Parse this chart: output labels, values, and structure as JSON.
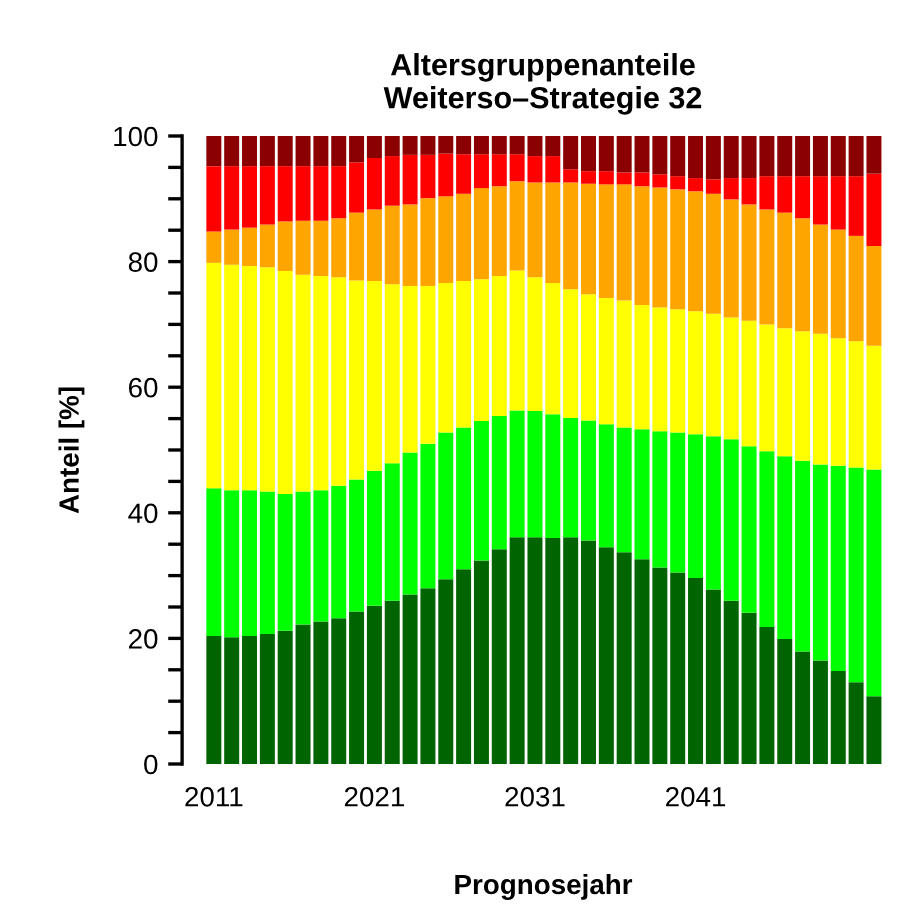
{
  "chart_data": {
    "type": "bar",
    "stacked": true,
    "title": "Altersgruppenanteile\nWeiterso–Strategie 32",
    "xlabel": "Prognosejahr",
    "ylabel": "Anteil [%]",
    "categories": [
      "2011",
      null,
      null,
      null,
      null,
      null,
      null,
      null,
      null,
      "2021",
      null,
      null,
      null,
      null,
      null,
      null,
      null,
      null,
      "2031",
      null,
      null,
      null,
      null,
      null,
      null,
      null,
      null,
      "2041",
      null,
      null,
      null,
      null,
      null,
      null,
      null,
      null,
      null,
      null
    ],
    "series": [
      {
        "color": "#006400",
        "values": [
          20.4,
          20.2,
          20.4,
          20.7,
          21.2,
          22.2,
          22.7,
          23.2,
          24.3,
          25.2,
          26.0,
          27.0,
          28.0,
          29.4,
          31.0,
          32.4,
          34.2,
          36.1,
          36.1,
          36.0,
          36.1,
          35.6,
          34.5,
          33.7,
          32.6,
          31.3,
          30.5,
          29.6,
          27.8,
          26.0,
          24.1,
          21.8,
          19.9,
          17.9,
          16.5,
          14.8,
          13.0,
          10.8
        ]
      },
      {
        "color": "#00ff00",
        "values": [
          23.5,
          23.4,
          23.2,
          22.7,
          21.8,
          21.2,
          20.9,
          21.1,
          21.0,
          21.5,
          21.9,
          22.6,
          23.0,
          23.4,
          22.6,
          22.2,
          21.2,
          20.2,
          20.1,
          19.7,
          19.0,
          19.1,
          19.6,
          19.9,
          20.7,
          21.7,
          22.3,
          22.9,
          24.4,
          25.7,
          26.5,
          28.0,
          29.1,
          30.4,
          31.2,
          32.7,
          34.2,
          36.1
        ]
      },
      {
        "color": "#ffff00",
        "values": [
          35.9,
          35.9,
          35.7,
          35.7,
          35.5,
          34.5,
          34.1,
          33.2,
          31.7,
          30.2,
          28.5,
          26.5,
          25.1,
          23.8,
          23.3,
          22.6,
          22.3,
          22.3,
          21.3,
          20.9,
          20.5,
          20.1,
          20.1,
          20.2,
          19.8,
          19.7,
          19.6,
          19.6,
          19.5,
          19.4,
          20.0,
          20.2,
          20.4,
          20.6,
          20.8,
          20.3,
          20.1,
          19.7
        ]
      },
      {
        "color": "#ffa500",
        "values": [
          5.0,
          5.6,
          6.1,
          6.8,
          7.9,
          8.6,
          8.8,
          9.4,
          10.8,
          11.4,
          12.5,
          13.0,
          14.0,
          13.8,
          13.9,
          14.5,
          14.3,
          14.2,
          15.1,
          16.0,
          17.0,
          17.6,
          18.1,
          18.5,
          18.9,
          19.1,
          19.1,
          19.1,
          19.1,
          18.8,
          18.5,
          18.3,
          18.4,
          18.0,
          17.4,
          17.3,
          16.8,
          15.9
        ]
      },
      {
        "color": "#ff0000",
        "values": [
          10.4,
          10.1,
          9.8,
          9.3,
          8.8,
          8.7,
          8.7,
          8.3,
          8.0,
          8.2,
          7.9,
          7.9,
          6.9,
          6.8,
          6.3,
          5.4,
          5.1,
          4.3,
          4.2,
          4.2,
          2.1,
          2.0,
          2.1,
          1.9,
          2.2,
          2.1,
          2.1,
          2.1,
          2.3,
          3.4,
          4.2,
          5.3,
          5.8,
          6.7,
          7.7,
          8.5,
          9.5,
          11.5
        ]
      },
      {
        "color": "#8b0000",
        "values": [
          4.8,
          4.8,
          4.8,
          4.8,
          4.8,
          4.8,
          4.8,
          4.8,
          4.2,
          3.5,
          3.2,
          3.0,
          3.0,
          2.8,
          2.9,
          2.9,
          2.9,
          2.9,
          3.2,
          3.2,
          5.3,
          5.6,
          5.6,
          5.8,
          5.8,
          6.1,
          6.4,
          6.7,
          6.9,
          6.7,
          6.7,
          6.4,
          6.4,
          6.4,
          6.4,
          6.4,
          6.4,
          6.0
        ]
      }
    ],
    "ylim": [
      0,
      100
    ],
    "yticks": [
      0,
      {
        "value": 5,
        "label": null
      },
      {
        "value": 10,
        "label": null
      },
      {
        "value": 15,
        "label": null
      },
      20,
      {
        "value": 25,
        "label": null
      },
      {
        "value": 30,
        "label": null
      },
      {
        "value": 35,
        "label": null
      },
      40,
      {
        "value": 45,
        "label": null
      },
      {
        "value": 50,
        "label": null
      },
      {
        "value": 55,
        "label": null
      },
      60,
      {
        "value": 65,
        "label": null
      },
      {
        "value": 70,
        "label": null
      },
      {
        "value": 75,
        "label": null
      },
      80,
      {
        "value": 85,
        "label": null
      },
      {
        "value": 90,
        "label": null
      },
      {
        "value": 95,
        "label": null
      },
      100
    ],
    "grid": false,
    "legend": false
  }
}
